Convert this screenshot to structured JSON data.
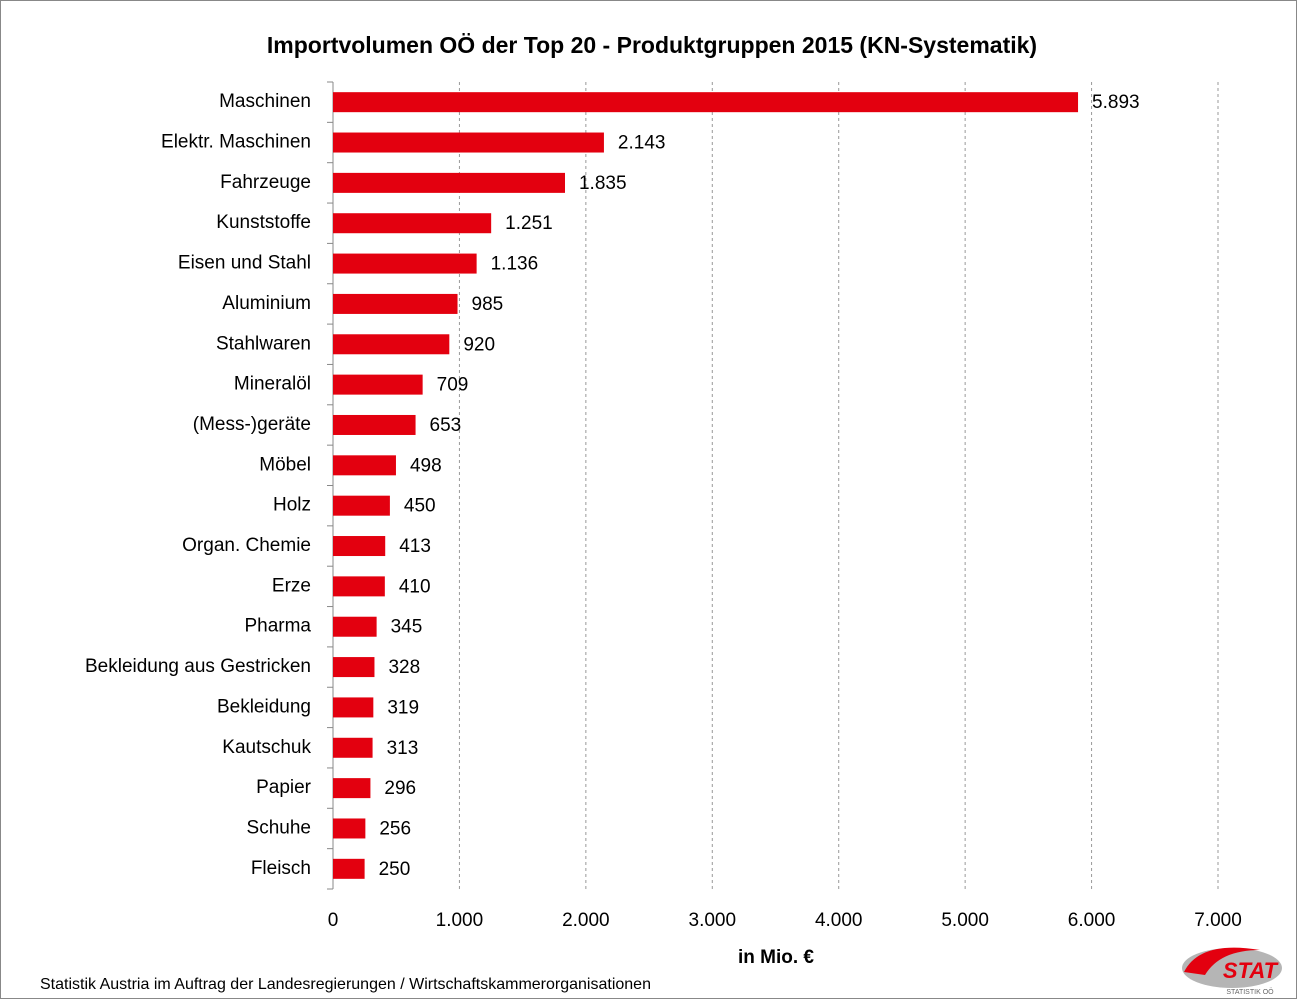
{
  "chart_data": {
    "type": "hbar",
    "title": "Importvolumen OÖ der Top 20 - Produktgruppen 2015 (KN-Systematik)",
    "categories": [
      "Maschinen",
      "Elektr. Maschinen",
      "Fahrzeuge",
      "Kunststoffe",
      "Eisen und Stahl",
      "Aluminium",
      "Stahlwaren",
      "Mineralöl",
      "(Mess-)geräte",
      "Möbel",
      "Holz",
      "Organ. Chemie",
      "Erze",
      "Pharma",
      "Bekleidung aus Gestricken",
      "Bekleidung",
      "Kautschuk",
      "Papier",
      "Schuhe",
      "Fleisch"
    ],
    "values": [
      5893,
      2143,
      1835,
      1251,
      1136,
      985,
      920,
      709,
      653,
      498,
      450,
      413,
      410,
      345,
      328,
      319,
      313,
      296,
      256,
      250
    ],
    "value_labels": [
      "5.893",
      "2.143",
      "1.835",
      "1.251",
      "1.136",
      "985",
      "920",
      "709",
      "653",
      "498",
      "450",
      "413",
      "410",
      "345",
      "328",
      "319",
      "313",
      "296",
      "256",
      "250"
    ],
    "color": "#e3000f",
    "xlim": [
      0,
      7000
    ],
    "xticks": [
      0,
      {
        "value": 1000,
        "label": "1.000"
      },
      {
        "value": 2000,
        "label": "2.000"
      },
      {
        "value": 3000,
        "label": "3.000"
      },
      {
        "value": 4000,
        "label": "4.000"
      },
      {
        "value": 5000,
        "label": "5.000"
      },
      {
        "value": 6000,
        "label": "6.000"
      },
      {
        "value": 7000,
        "label": "7.000"
      }
    ],
    "xlabel": "in Mio. €",
    "grid": true,
    "source": "Statistik Austria im Auftrag der Landesregierungen / Wirtschaftskammerorganisationen",
    "logo": {
      "text": "STAT",
      "subtext": "STATISTIK OÖ"
    }
  }
}
